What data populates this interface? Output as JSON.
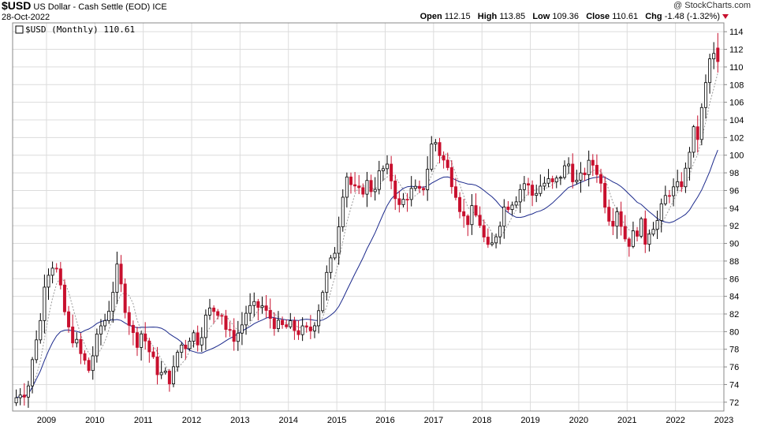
{
  "header": {
    "symbol": "$USD",
    "name": "US Dollar - Cash Settle (EOD)",
    "exchange": "ICE",
    "date": "28-Oct-2022",
    "watermark": "@ StockCharts.com",
    "open_label": "Open",
    "open": "112.15",
    "high_label": "High",
    "high": "113.85",
    "low_label": "Low",
    "low": "109.36",
    "close_label": "Close",
    "close": "110.61",
    "chg_label": "Chg",
    "chg": "-1.48 (-1.32%)"
  },
  "legend": {
    "text": "$USD (Monthly) 110.61"
  },
  "colors": {
    "up": "#ffffff",
    "down": "#c8102e",
    "ma_slow": "#1c2a8c",
    "ma_fast": "#9a9a9a",
    "grid": "#dcdcdc"
  },
  "chart_data": {
    "type": "candlestick",
    "timeframe": "monthly",
    "ylim": [
      71,
      115
    ],
    "yticks": [
      72,
      74,
      76,
      78,
      80,
      82,
      84,
      86,
      88,
      90,
      92,
      94,
      96,
      98,
      100,
      102,
      104,
      106,
      108,
      110,
      112,
      114
    ],
    "xlim": [
      2008.3,
      2023.0
    ],
    "xticks": [
      "2009",
      "2010",
      "2011",
      "2012",
      "2013",
      "2014",
      "2015",
      "2016",
      "2017",
      "2018",
      "2019",
      "2020",
      "2021",
      "2022",
      "2023"
    ],
    "grid": true,
    "anchors": [
      [
        2008.33,
        72.5
      ],
      [
        2008.45,
        73.5
      ],
      [
        2008.55,
        73.0
      ],
      [
        2008.65,
        76.0
      ],
      [
        2008.75,
        79.5
      ],
      [
        2008.85,
        81.5
      ],
      [
        2008.92,
        86.0
      ],
      [
        2009.0,
        87.0
      ],
      [
        2009.12,
        88.0
      ],
      [
        2009.2,
        86.0
      ],
      [
        2009.3,
        83.0
      ],
      [
        2009.42,
        80.0
      ],
      [
        2009.55,
        79.0
      ],
      [
        2009.65,
        77.5
      ],
      [
        2009.75,
        76.5
      ],
      [
        2009.85,
        75.5
      ],
      [
        2009.92,
        77.5
      ],
      [
        2010.0,
        79.0
      ],
      [
        2010.1,
        81.0
      ],
      [
        2010.2,
        81.5
      ],
      [
        2010.3,
        84.0
      ],
      [
        2010.42,
        87.0
      ],
      [
        2010.5,
        85.0
      ],
      [
        2010.6,
        82.5
      ],
      [
        2010.7,
        80.5
      ],
      [
        2010.8,
        78.5
      ],
      [
        2010.9,
        80.0
      ],
      [
        2011.0,
        79.0
      ],
      [
        2011.1,
        77.5
      ],
      [
        2011.2,
        76.0
      ],
      [
        2011.35,
        75.0
      ],
      [
        2011.45,
        75.0
      ],
      [
        2011.55,
        74.5
      ],
      [
        2011.65,
        77.5
      ],
      [
        2011.75,
        78.5
      ],
      [
        2011.85,
        78.5
      ],
      [
        2011.95,
        80.0
      ],
      [
        2012.1,
        79.0
      ],
      [
        2012.25,
        81.5
      ],
      [
        2012.35,
        82.5
      ],
      [
        2012.5,
        82.5
      ],
      [
        2012.6,
        82.0
      ],
      [
        2012.7,
        79.5
      ],
      [
        2012.85,
        79.5
      ],
      [
        2012.95,
        80.0
      ],
      [
        2013.1,
        82.5
      ],
      [
        2013.2,
        82.5
      ],
      [
        2013.4,
        83.0
      ],
      [
        2013.5,
        82.0
      ],
      [
        2013.6,
        81.5
      ],
      [
        2013.75,
        80.5
      ],
      [
        2013.85,
        80.5
      ],
      [
        2014.0,
        80.5
      ],
      [
        2014.2,
        80.0
      ],
      [
        2014.4,
        80.0
      ],
      [
        2014.55,
        82.0
      ],
      [
        2014.7,
        85.5
      ],
      [
        2014.85,
        88.0
      ],
      [
        2014.95,
        90.0
      ],
      [
        2015.05,
        95.0
      ],
      [
        2015.15,
        98.0
      ],
      [
        2015.3,
        96.0
      ],
      [
        2015.45,
        95.5
      ],
      [
        2015.55,
        97.0
      ],
      [
        2015.7,
        96.0
      ],
      [
        2015.85,
        98.0
      ],
      [
        2015.95,
        98.5
      ],
      [
        2016.05,
        98.0
      ],
      [
        2016.15,
        96.0
      ],
      [
        2016.25,
        94.0
      ],
      [
        2016.4,
        95.5
      ],
      [
        2016.55,
        96.0
      ],
      [
        2016.7,
        95.5
      ],
      [
        2016.8,
        97.5
      ],
      [
        2016.9,
        101.0
      ],
      [
        2017.0,
        101.5
      ],
      [
        2017.1,
        100.0
      ],
      [
        2017.2,
        99.0
      ],
      [
        2017.35,
        97.0
      ],
      [
        2017.45,
        95.5
      ],
      [
        2017.55,
        93.0
      ],
      [
        2017.65,
        92.5
      ],
      [
        2017.75,
        93.5
      ],
      [
        2017.85,
        93.0
      ],
      [
        2017.95,
        92.0
      ],
      [
        2018.05,
        89.0
      ],
      [
        2018.15,
        89.5
      ],
      [
        2018.3,
        92.0
      ],
      [
        2018.4,
        94.0
      ],
      [
        2018.5,
        94.5
      ],
      [
        2018.6,
        95.0
      ],
      [
        2018.7,
        95.5
      ],
      [
        2018.8,
        97.0
      ],
      [
        2018.9,
        96.5
      ],
      [
        2019.0,
        95.5
      ],
      [
        2019.15,
        96.5
      ],
      [
        2019.3,
        97.0
      ],
      [
        2019.45,
        96.5
      ],
      [
        2019.6,
        98.0
      ],
      [
        2019.75,
        99.0
      ],
      [
        2019.85,
        97.5
      ],
      [
        2019.95,
        96.5
      ],
      [
        2020.05,
        98.0
      ],
      [
        2020.2,
        99.0
      ],
      [
        2020.3,
        99.0
      ],
      [
        2020.45,
        96.0
      ],
      [
        2020.55,
        93.5
      ],
      [
        2020.65,
        92.5
      ],
      [
        2020.75,
        94.0
      ],
      [
        2020.85,
        92.0
      ],
      [
        2020.95,
        90.0
      ],
      [
        2021.05,
        90.5
      ],
      [
        2021.15,
        91.5
      ],
      [
        2021.25,
        92.0
      ],
      [
        2021.35,
        90.0
      ],
      [
        2021.45,
        92.5
      ],
      [
        2021.55,
        92.0
      ],
      [
        2021.65,
        93.5
      ],
      [
        2021.8,
        96.0
      ],
      [
        2021.95,
        96.0
      ],
      [
        2022.05,
        96.5
      ],
      [
        2022.2,
        98.5
      ],
      [
        2022.3,
        103.0
      ],
      [
        2022.4,
        101.5
      ],
      [
        2022.5,
        105.0
      ],
      [
        2022.6,
        108.5
      ],
      [
        2022.7,
        112.0
      ],
      [
        2022.78,
        110.6
      ]
    ],
    "last_close": 110.61
  }
}
